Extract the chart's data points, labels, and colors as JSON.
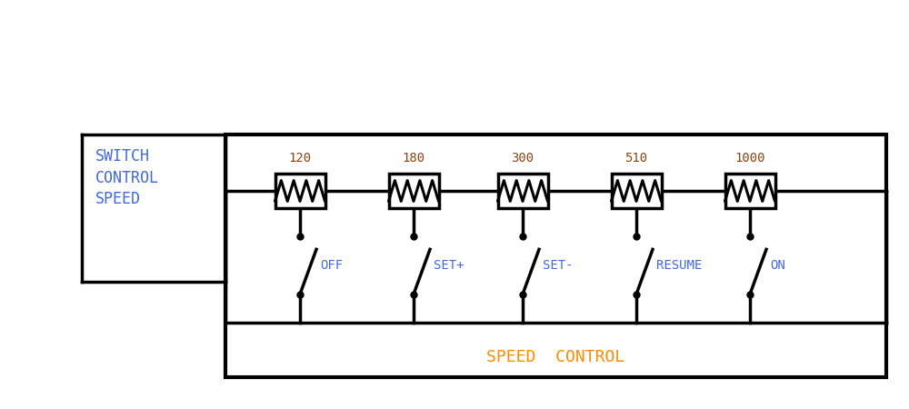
{
  "bg_color": "#ffffff",
  "line_color": "#000000",
  "resistor_label_color": "#8B4513",
  "switch_label_color": "#4169E1",
  "speed_control_color": "#FF8C00",
  "switch_corner_label": "SWITCH\nCONTROL\nSPEED",
  "speed_control_label": "SPEED  CONTROL",
  "resistor_values": [
    "120",
    "180",
    "300",
    "510",
    "1000"
  ],
  "switch_labels": [
    "OFF",
    "SET+",
    "SET-",
    "RESUME",
    "ON"
  ],
  "font_size_labels": 10,
  "font_size_resistors": 10,
  "font_size_speed_control": 13,
  "font_size_switch_label": 12
}
